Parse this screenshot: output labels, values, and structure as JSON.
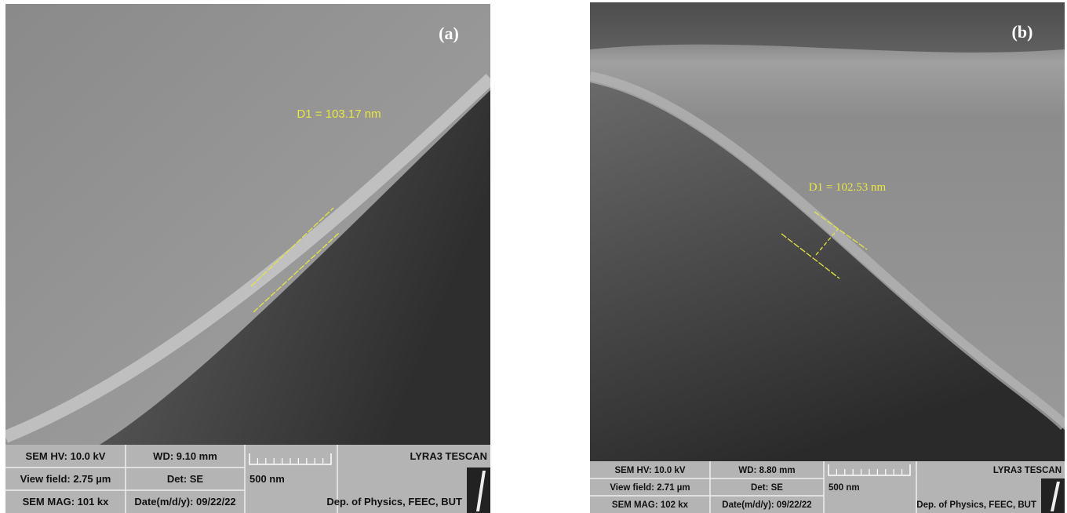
{
  "panels": [
    {
      "label": "(a)",
      "measurement": "D1 = 103.17 nm",
      "info": {
        "hv": "SEM HV: 10.0 kV",
        "wd": "WD: 9.10 mm",
        "brand": "LYRA3 TESCAN",
        "view_field": "View field: 2.75 µm",
        "detector": "Det: SE",
        "scale": "500 nm",
        "mag": "SEM MAG: 101 kx",
        "date": "Date(m/d/y): 09/22/22",
        "lab": "Dep. of Physics, FEEC, BUT"
      }
    },
    {
      "label": "(b)",
      "measurement": "D1 = 102.53 nm",
      "info": {
        "hv": "SEM HV: 10.0 kV",
        "wd": "WD: 8.80 mm",
        "brand": "LYRA3 TESCAN",
        "view_field": "View field: 2.71 µm",
        "detector": "Det: SE",
        "scale": "500 nm",
        "mag": "SEM MAG: 102 kx",
        "date": "Date(m/d/y): 09/22/22",
        "lab": "Dep. of Physics, FEEC, BUT"
      }
    }
  ]
}
